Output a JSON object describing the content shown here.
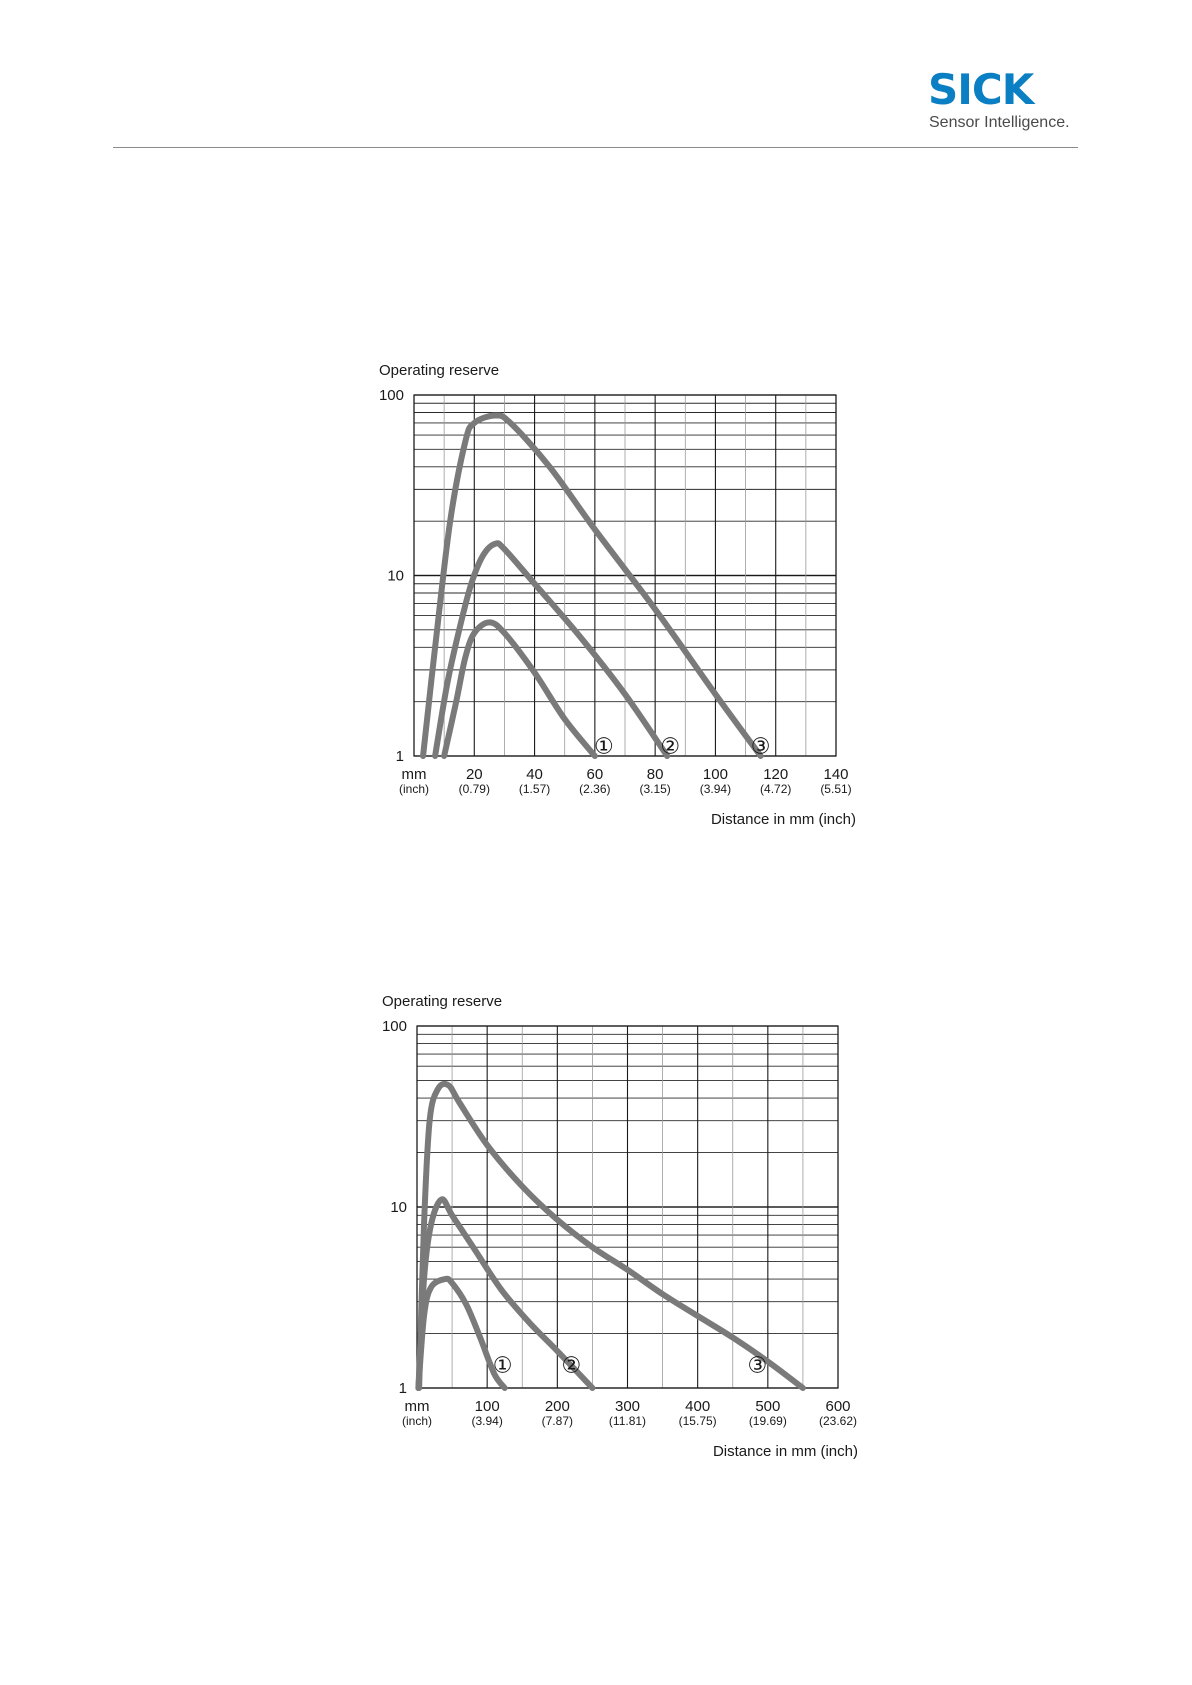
{
  "header": {
    "logo_text": "SICK",
    "logo_tagline": "Sensor Intelligence.",
    "brand_color": "#0a7fc3"
  },
  "chart_data": [
    {
      "type": "line",
      "title": "",
      "ylabel": "Operating reserve",
      "xlabel": "Distance in mm (inch)",
      "yscale": "log",
      "ylim": [
        1,
        100
      ],
      "xlim": [
        0,
        140
      ],
      "y_ticks": [
        "100",
        "10",
        "1"
      ],
      "x_unit_label": "mm",
      "x_unit_label_sub": "(inch)",
      "x_ticks": [
        {
          "mm": "20",
          "inch": "(0.79)"
        },
        {
          "mm": "40",
          "inch": "(1.57)"
        },
        {
          "mm": "60",
          "inch": "(2.36)"
        },
        {
          "mm": "80",
          "inch": "(3.15)"
        },
        {
          "mm": "100",
          "inch": "(3.94)"
        },
        {
          "mm": "120",
          "inch": "(4.72)"
        },
        {
          "mm": "140",
          "inch": "(5.51)"
        }
      ],
      "grid": true,
      "line_color": "#7a7a7a",
      "series": [
        {
          "marker": "①",
          "marker_at": [
            63,
            1.1
          ],
          "points": [
            [
              10,
              1
            ],
            [
              14,
              2
            ],
            [
              17,
              3.5
            ],
            [
              20,
              4.8
            ],
            [
              25,
              5.5
            ],
            [
              30,
              4.8
            ],
            [
              40,
              2.9
            ],
            [
              50,
              1.6
            ],
            [
              60,
              1
            ]
          ]
        },
        {
          "marker": "②",
          "marker_at": [
            85,
            1.1
          ],
          "points": [
            [
              7,
              1
            ],
            [
              11,
              2.5
            ],
            [
              15,
              5
            ],
            [
              19,
              9
            ],
            [
              23,
              13
            ],
            [
              27,
              15
            ],
            [
              30,
              14
            ],
            [
              40,
              9
            ],
            [
              55,
              4.6
            ],
            [
              70,
              2.2
            ],
            [
              84,
              1
            ]
          ]
        },
        {
          "marker": "③",
          "marker_at": [
            115,
            1.1
          ],
          "points": [
            [
              3,
              1
            ],
            [
              7,
              4
            ],
            [
              12,
              20
            ],
            [
              17,
              55
            ],
            [
              20,
              70
            ],
            [
              27,
              77
            ],
            [
              32,
              70
            ],
            [
              45,
              40
            ],
            [
              60,
              18
            ],
            [
              80,
              6.5
            ],
            [
              100,
              2.2
            ],
            [
              115,
              1
            ]
          ]
        }
      ]
    },
    {
      "type": "line",
      "title": "",
      "ylabel": "Operating reserve",
      "xlabel": "Distance in mm (inch)",
      "yscale": "log",
      "ylim": [
        1,
        100
      ],
      "xlim": [
        0,
        600
      ],
      "y_ticks": [
        "100",
        "10",
        "1"
      ],
      "x_unit_label": "mm",
      "x_unit_label_sub": "(inch)",
      "x_ticks": [
        {
          "mm": "100",
          "inch": "(3.94)"
        },
        {
          "mm": "200",
          "inch": "(7.87)"
        },
        {
          "mm": "300",
          "inch": "(11.81)"
        },
        {
          "mm": "400",
          "inch": "(15.75)"
        },
        {
          "mm": "500",
          "inch": "(19.69)"
        },
        {
          "mm": "600",
          "inch": "(23.62)"
        }
      ],
      "grid": true,
      "line_color": "#7a7a7a",
      "series": [
        {
          "marker": "①",
          "marker_at": [
            122,
            1.3
          ],
          "points": [
            [
              2,
              1
            ],
            [
              10,
              2.5
            ],
            [
              20,
              3.6
            ],
            [
              40,
              4
            ],
            [
              50,
              3.8
            ],
            [
              70,
              2.9
            ],
            [
              90,
              1.9
            ],
            [
              110,
              1.2
            ],
            [
              125,
              1
            ]
          ]
        },
        {
          "marker": "②",
          "marker_at": [
            220,
            1.3
          ],
          "points": [
            [
              2,
              1
            ],
            [
              10,
              4
            ],
            [
              20,
              8
            ],
            [
              35,
              11
            ],
            [
              50,
              9
            ],
            [
              80,
              6
            ],
            [
              120,
              3.5
            ],
            [
              160,
              2.3
            ],
            [
              200,
              1.6
            ],
            [
              250,
              1
            ]
          ]
        },
        {
          "marker": "③",
          "marker_at": [
            485,
            1.3
          ],
          "points": [
            [
              3,
              1
            ],
            [
              10,
              8
            ],
            [
              18,
              30
            ],
            [
              30,
              45
            ],
            [
              45,
              47
            ],
            [
              60,
              38
            ],
            [
              100,
              22
            ],
            [
              150,
              13
            ],
            [
              200,
              8.5
            ],
            [
              250,
              6
            ],
            [
              300,
              4.5
            ],
            [
              350,
              3.3
            ],
            [
              400,
              2.5
            ],
            [
              450,
              1.9
            ],
            [
              500,
              1.4
            ],
            [
              550,
              1
            ]
          ]
        }
      ]
    }
  ]
}
